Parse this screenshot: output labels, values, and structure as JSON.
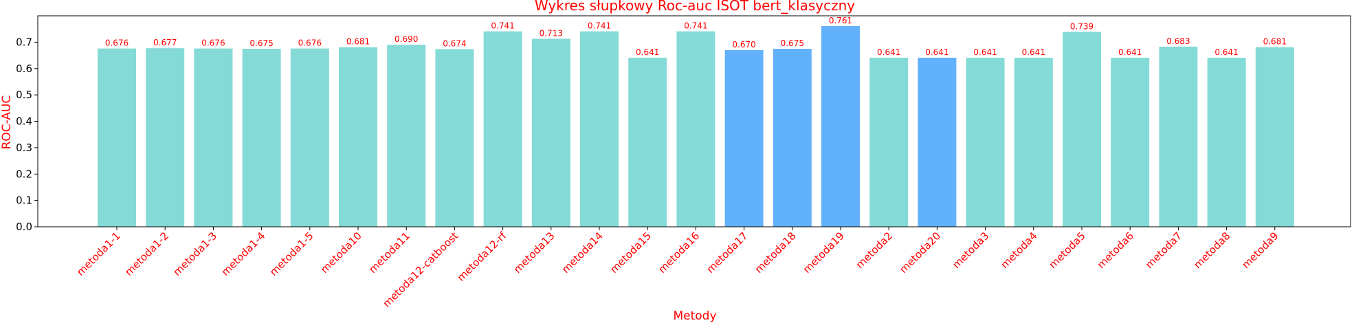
{
  "colors": {
    "bar_default": "#84dad6",
    "bar_highlight": "#62b1fc",
    "text_accent": "#ff0000",
    "axis": "#000000"
  },
  "chart_data": {
    "type": "bar",
    "title": "Wykres słupkowy Roc-auc ISOT bert_klasyczny",
    "xlabel": "Metody",
    "ylabel": "ROC-AUC",
    "ylim": [
      0,
      0.8
    ],
    "yticks": [
      0.0,
      0.1,
      0.2,
      0.3,
      0.4,
      0.5,
      0.6,
      0.7
    ],
    "ytick_labels": [
      "0.0",
      "0.1",
      "0.2",
      "0.3",
      "0.4",
      "0.5",
      "0.6",
      "0.7"
    ],
    "grid": false,
    "categories": [
      "metoda1-1",
      "metoda1-2",
      "metoda1-3",
      "metoda1-4",
      "metoda1-5",
      "metoda10",
      "metoda11",
      "metoda12-catboost",
      "metoda12-rf",
      "metoda13",
      "metoda14",
      "metoda15",
      "metoda16",
      "metoda17",
      "metoda18",
      "metoda19",
      "metoda2",
      "metoda20",
      "metoda3",
      "metoda4",
      "metoda5",
      "metoda6",
      "metoda7",
      "metoda8",
      "metoda9"
    ],
    "values": [
      0.676,
      0.677,
      0.676,
      0.675,
      0.676,
      0.681,
      0.69,
      0.674,
      0.741,
      0.713,
      0.741,
      0.641,
      0.741,
      0.67,
      0.675,
      0.761,
      0.641,
      0.641,
      0.641,
      0.641,
      0.739,
      0.641,
      0.683,
      0.641,
      0.681
    ],
    "value_labels": [
      "0.676",
      "0.677",
      "0.676",
      "0.675",
      "0.676",
      "0.681",
      "0.690",
      "0.674",
      "0.741",
      "0.713",
      "0.741",
      "0.641",
      "0.741",
      "0.670",
      "0.675",
      "0.761",
      "0.641",
      "0.641",
      "0.641",
      "0.641",
      "0.739",
      "0.641",
      "0.683",
      "0.641",
      "0.681"
    ],
    "highlighted": [
      "metoda17",
      "metoda18",
      "metoda19",
      "metoda20"
    ]
  }
}
